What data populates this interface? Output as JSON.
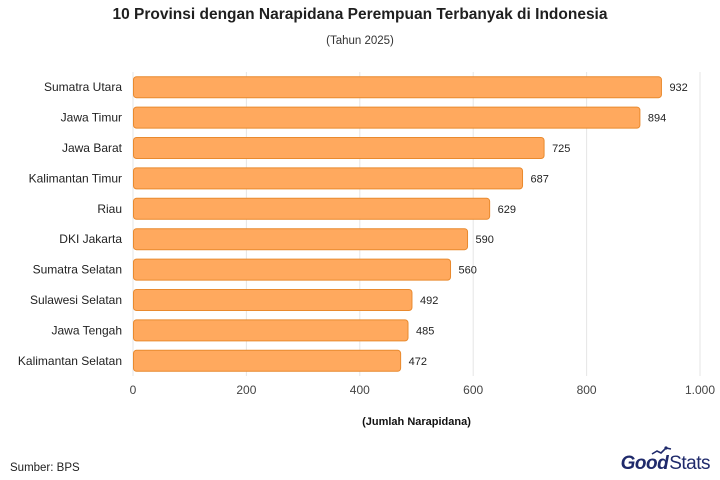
{
  "header": {
    "title": "10 Provinsi dengan Narapidana Perempuan Terbanyak di Indonesia",
    "subtitle": "(Tahun 2025)"
  },
  "footer": {
    "source": "Sumber: BPS",
    "logo_part1": "Good",
    "logo_part2": "Stats"
  },
  "colors": {
    "bar_fill": "#FFA95E",
    "bar_stroke": "#E98A2E",
    "grid": "#e5e5e5",
    "brand": "#1f2a6b"
  },
  "chart_data": {
    "type": "bar",
    "orientation": "horizontal",
    "categories": [
      "Sumatra Utara",
      "Jawa Timur",
      "Jawa Barat",
      "Kalimantan Timur",
      "Riau",
      "DKI Jakarta",
      "Sumatra Selatan",
      "Sulawesi Selatan",
      "Jawa Tengah",
      "Kalimantan Selatan"
    ],
    "values": [
      932,
      894,
      725,
      687,
      629,
      590,
      560,
      492,
      485,
      472
    ],
    "xlabel": "(Jumlah Narapidana)",
    "xlim": [
      0,
      1000
    ],
    "xticks": [
      0,
      200,
      400,
      600,
      800,
      1000
    ],
    "xtick_labels": [
      "0",
      "200",
      "400",
      "600",
      "800",
      "1.000"
    ],
    "grid": true
  }
}
